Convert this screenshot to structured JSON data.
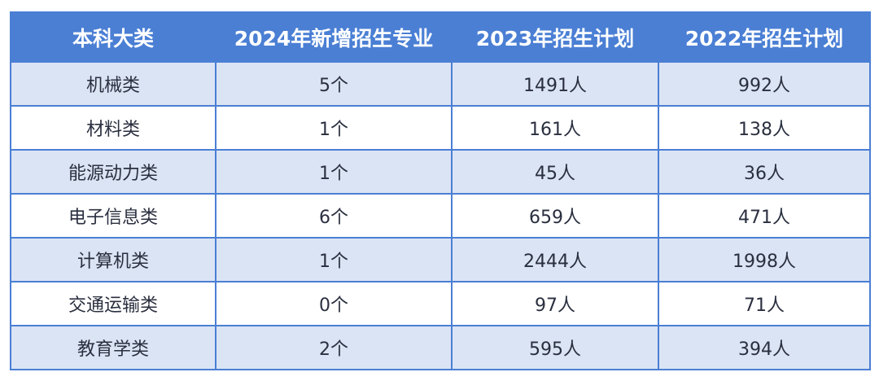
{
  "headers": [
    "本科大类",
    "2024年新增招生专业",
    "2023年招生计划",
    "2022年招生计划"
  ],
  "rows": [
    [
      "机械类",
      "5个",
      "1491人",
      "992人"
    ],
    [
      "材料类",
      "1个",
      "161人",
      "138人"
    ],
    [
      "能源动力类",
      "1个",
      "45人",
      "36人"
    ],
    [
      "电子信息类",
      "6个",
      "659人",
      "471人"
    ],
    [
      "计算机类",
      "1个",
      "2444人",
      "1998人"
    ],
    [
      "交通运输类",
      "0个",
      "97人",
      "71人"
    ],
    [
      "教育学类",
      "2个",
      "595人",
      "394人"
    ]
  ],
  "colors": {
    "header_bg": "#4a7fd4",
    "stripe": "#dbe4f4",
    "text": "#2a2f3f"
  }
}
